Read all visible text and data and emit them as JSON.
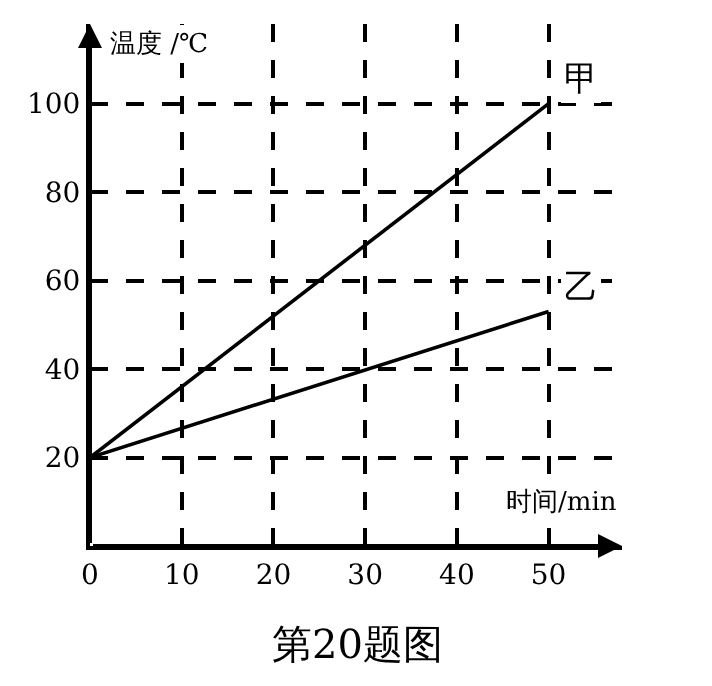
{
  "chart_data": {
    "type": "line",
    "x": [
      0,
      50
    ],
    "series": [
      {
        "name": "甲",
        "color": "#000000",
        "values": [
          20,
          100
        ]
      },
      {
        "name": "乙",
        "color": "#000000",
        "values": [
          20,
          53
        ]
      }
    ],
    "xlabel": "时间/min",
    "ylabel": "温度 /℃",
    "xlim": [
      0,
      58
    ],
    "ylim": [
      0,
      118
    ],
    "xticks": [
      0,
      10,
      20,
      30,
      40,
      50
    ],
    "yticks": [
      20,
      40,
      60,
      80,
      100
    ],
    "grid": true,
    "legend": false,
    "marker": "none",
    "line_style": "solid",
    "annotations": [
      "第20题图"
    ]
  }
}
